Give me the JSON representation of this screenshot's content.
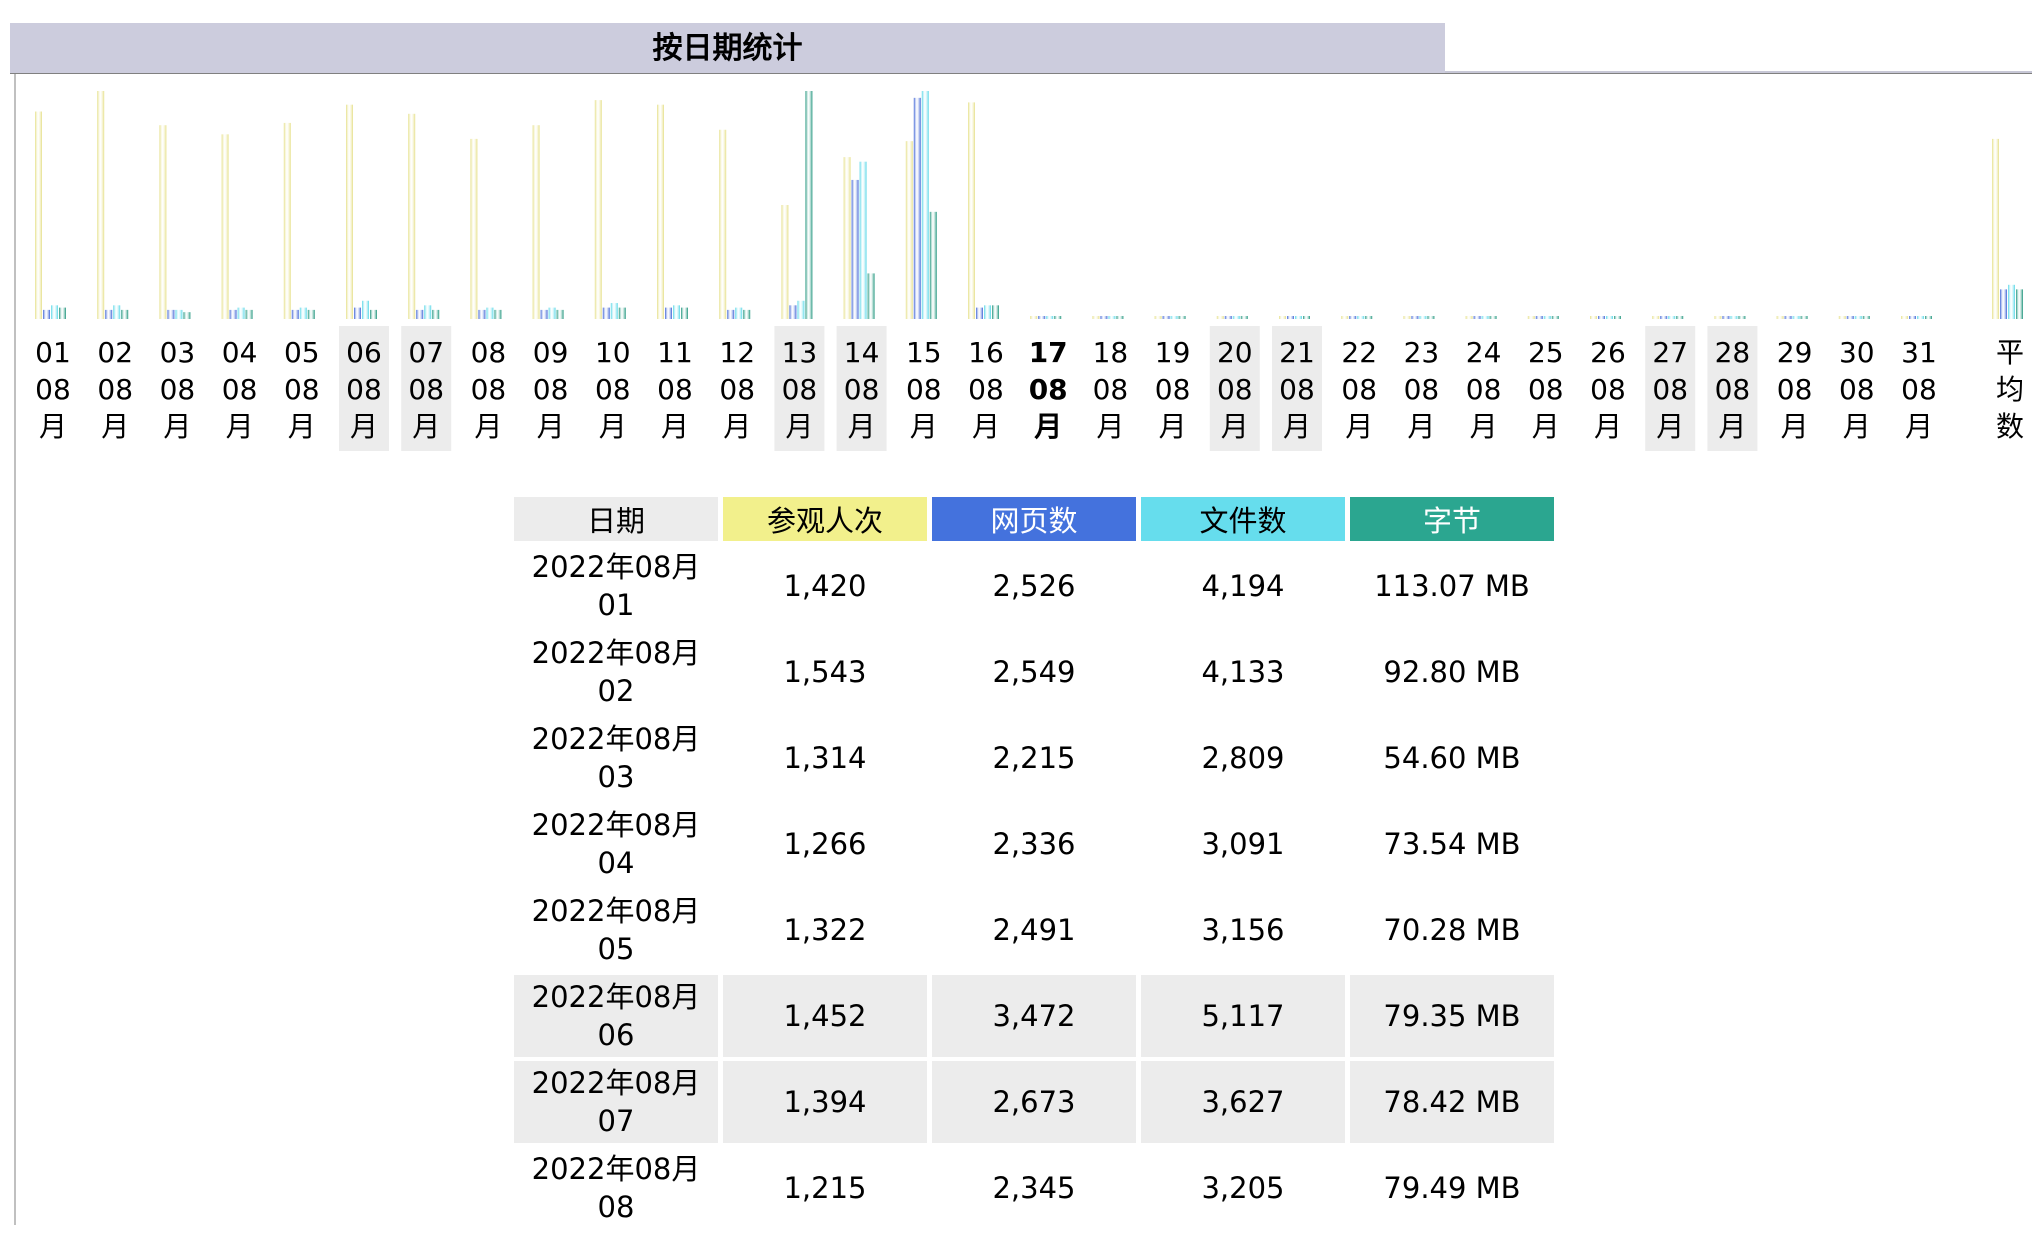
{
  "title": "按日期统计",
  "colors": {
    "visits": "#e6e089",
    "pages": "#3f64d6",
    "files": "#5ad8e8",
    "bytes": "#1f957c",
    "weekend_bg": "#ececec",
    "header_bg": "#ccccdd"
  },
  "chart_data": {
    "type": "bar",
    "categories": [
      {
        "day": "01",
        "month": "08",
        "unit": "月",
        "weekend": false,
        "current": false
      },
      {
        "day": "02",
        "month": "08",
        "unit": "月",
        "weekend": false,
        "current": false
      },
      {
        "day": "03",
        "month": "08",
        "unit": "月",
        "weekend": false,
        "current": false
      },
      {
        "day": "04",
        "month": "08",
        "unit": "月",
        "weekend": false,
        "current": false
      },
      {
        "day": "05",
        "month": "08",
        "unit": "月",
        "weekend": false,
        "current": false
      },
      {
        "day": "06",
        "month": "08",
        "unit": "月",
        "weekend": true,
        "current": false
      },
      {
        "day": "07",
        "month": "08",
        "unit": "月",
        "weekend": true,
        "current": false
      },
      {
        "day": "08",
        "month": "08",
        "unit": "月",
        "weekend": false,
        "current": false
      },
      {
        "day": "09",
        "month": "08",
        "unit": "月",
        "weekend": false,
        "current": false
      },
      {
        "day": "10",
        "month": "08",
        "unit": "月",
        "weekend": false,
        "current": false
      },
      {
        "day": "11",
        "month": "08",
        "unit": "月",
        "weekend": false,
        "current": false
      },
      {
        "day": "12",
        "month": "08",
        "unit": "月",
        "weekend": false,
        "current": false
      },
      {
        "day": "13",
        "month": "08",
        "unit": "月",
        "weekend": true,
        "current": false
      },
      {
        "day": "14",
        "month": "08",
        "unit": "月",
        "weekend": true,
        "current": false
      },
      {
        "day": "15",
        "month": "08",
        "unit": "月",
        "weekend": false,
        "current": false
      },
      {
        "day": "16",
        "month": "08",
        "unit": "月",
        "weekend": false,
        "current": false
      },
      {
        "day": "17",
        "month": "08",
        "unit": "月",
        "weekend": false,
        "current": true
      },
      {
        "day": "18",
        "month": "08",
        "unit": "月",
        "weekend": false,
        "current": false
      },
      {
        "day": "19",
        "month": "08",
        "unit": "月",
        "weekend": false,
        "current": false
      },
      {
        "day": "20",
        "month": "08",
        "unit": "月",
        "weekend": true,
        "current": false
      },
      {
        "day": "21",
        "month": "08",
        "unit": "月",
        "weekend": true,
        "current": false
      },
      {
        "day": "22",
        "month": "08",
        "unit": "月",
        "weekend": false,
        "current": false
      },
      {
        "day": "23",
        "month": "08",
        "unit": "月",
        "weekend": false,
        "current": false
      },
      {
        "day": "24",
        "month": "08",
        "unit": "月",
        "weekend": false,
        "current": false
      },
      {
        "day": "25",
        "month": "08",
        "unit": "月",
        "weekend": false,
        "current": false
      },
      {
        "day": "26",
        "month": "08",
        "unit": "月",
        "weekend": false,
        "current": false
      },
      {
        "day": "27",
        "month": "08",
        "unit": "月",
        "weekend": true,
        "current": false
      },
      {
        "day": "28",
        "month": "08",
        "unit": "月",
        "weekend": true,
        "current": false
      },
      {
        "day": "29",
        "month": "08",
        "unit": "月",
        "weekend": false,
        "current": false
      },
      {
        "day": "30",
        "month": "08",
        "unit": "月",
        "weekend": false,
        "current": false
      },
      {
        "day": "31",
        "month": "08",
        "unit": "月",
        "weekend": false,
        "current": false
      }
    ],
    "average_label": [
      "平",
      "均",
      "数"
    ],
    "legend": [
      "参观人次",
      "网页数",
      "文件数",
      "字节"
    ],
    "ylim": [
      0,
      1.0
    ],
    "series": [
      {
        "name": "参观人次",
        "color": "#e6e089",
        "values": [
          0.91,
          1.0,
          0.85,
          0.81,
          0.86,
          0.94,
          0.9,
          0.79,
          0.85,
          0.96,
          0.94,
          0.83,
          0.5,
          0.71,
          0.78,
          0.95,
          0,
          0,
          0,
          0,
          0,
          0,
          0,
          0,
          0,
          0,
          0,
          0,
          0,
          0,
          0
        ],
        "average": 0.79
      },
      {
        "name": "网页数",
        "color": "#3f64d6",
        "values": [
          0.04,
          0.04,
          0.04,
          0.04,
          0.04,
          0.05,
          0.04,
          0.04,
          0.04,
          0.05,
          0.05,
          0.04,
          0.06,
          0.61,
          0.97,
          0.05,
          0,
          0,
          0,
          0,
          0,
          0,
          0,
          0,
          0,
          0,
          0,
          0,
          0,
          0,
          0
        ],
        "average": 0.13
      },
      {
        "name": "文件数",
        "color": "#5ad8e8",
        "values": [
          0.06,
          0.06,
          0.04,
          0.05,
          0.05,
          0.08,
          0.06,
          0.05,
          0.05,
          0.07,
          0.06,
          0.05,
          0.08,
          0.69,
          1.0,
          0.06,
          0,
          0,
          0,
          0,
          0,
          0,
          0,
          0,
          0,
          0,
          0,
          0,
          0,
          0,
          0
        ],
        "average": 0.15
      },
      {
        "name": "字节",
        "color": "#1f957c",
        "values": [
          0.05,
          0.04,
          0.03,
          0.04,
          0.04,
          0.04,
          0.04,
          0.04,
          0.04,
          0.05,
          0.05,
          0.04,
          1.0,
          0.2,
          0.47,
          0.06,
          0,
          0,
          0,
          0,
          0,
          0,
          0,
          0,
          0,
          0,
          0,
          0,
          0,
          0,
          0
        ],
        "average": 0.13
      }
    ]
  },
  "table": {
    "headers": [
      "日期",
      "参观人次",
      "网页数",
      "文件数",
      "字节"
    ],
    "rows": [
      {
        "date": "2022年08月",
        "day": "01",
        "visits": "1,420",
        "pages": "2,526",
        "files": "4,194",
        "bytes": "113.07 MB",
        "weekend": false
      },
      {
        "date": "2022年08月",
        "day": "02",
        "visits": "1,543",
        "pages": "2,549",
        "files": "4,133",
        "bytes": "92.80 MB",
        "weekend": false
      },
      {
        "date": "2022年08月",
        "day": "03",
        "visits": "1,314",
        "pages": "2,215",
        "files": "2,809",
        "bytes": "54.60 MB",
        "weekend": false
      },
      {
        "date": "2022年08月",
        "day": "04",
        "visits": "1,266",
        "pages": "2,336",
        "files": "3,091",
        "bytes": "73.54 MB",
        "weekend": false
      },
      {
        "date": "2022年08月",
        "day": "05",
        "visits": "1,322",
        "pages": "2,491",
        "files": "3,156",
        "bytes": "70.28 MB",
        "weekend": false
      },
      {
        "date": "2022年08月",
        "day": "06",
        "visits": "1,452",
        "pages": "3,472",
        "files": "5,117",
        "bytes": "79.35 MB",
        "weekend": true
      },
      {
        "date": "2022年08月",
        "day": "07",
        "visits": "1,394",
        "pages": "2,673",
        "files": "3,627",
        "bytes": "78.42 MB",
        "weekend": true
      },
      {
        "date": "2022年08月",
        "day": "08",
        "visits": "1,215",
        "pages": "2,345",
        "files": "3,205",
        "bytes": "79.49 MB",
        "weekend": false
      }
    ]
  }
}
